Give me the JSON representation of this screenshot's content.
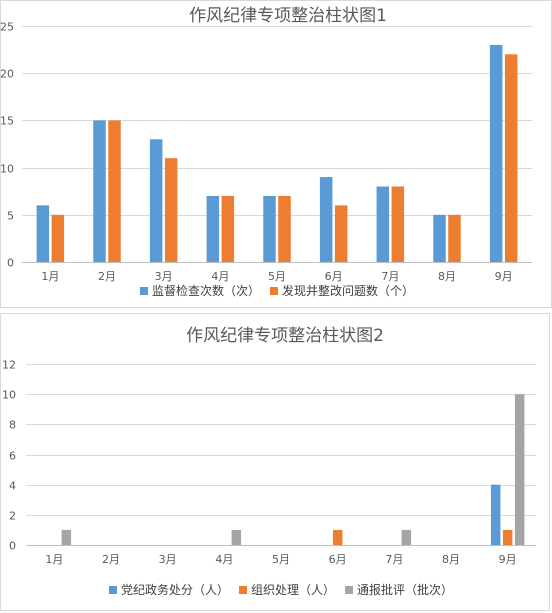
{
  "chart_data": [
    {
      "type": "bar",
      "title": "作风纪律专项整治柱状图1",
      "categories": [
        "1月",
        "2月",
        "3月",
        "4月",
        "5月",
        "6月",
        "7月",
        "8月",
        "9月"
      ],
      "ylim": [
        0,
        25
      ],
      "yticks": [
        "0",
        "5",
        "10",
        "15",
        "20",
        "25"
      ],
      "grid": true,
      "legend": "bottom",
      "series": [
        {
          "name": "监督检查次数（次）",
          "color": "#5b9bd5",
          "values": [
            6,
            15,
            13,
            7,
            7,
            9,
            8,
            5,
            23
          ]
        },
        {
          "name": "发现并整改问题数（个）",
          "color": "#ed7d31",
          "values": [
            5,
            15,
            11,
            7,
            7,
            6,
            8,
            5,
            22
          ]
        }
      ]
    },
    {
      "type": "bar",
      "title": "作风纪律专项整治柱状图2",
      "categories": [
        "1月",
        "2月",
        "3月",
        "4月",
        "5月",
        "6月",
        "7月",
        "8月",
        "9月"
      ],
      "ylim": [
        0,
        12
      ],
      "yticks": [
        "0",
        "2",
        "4",
        "6",
        "8",
        "10",
        "12"
      ],
      "grid": true,
      "legend": "bottom",
      "series": [
        {
          "name": "党纪政务处分（人）",
          "color": "#5b9bd5",
          "values": [
            0,
            0,
            0,
            0,
            0,
            0,
            0,
            0,
            4
          ]
        },
        {
          "name": "组织处理（人）",
          "color": "#ed7d31",
          "values": [
            0,
            0,
            0,
            0,
            0,
            1,
            0,
            0,
            1
          ]
        },
        {
          "name": "通报批评（批次）",
          "color": "#a5a5a5",
          "values": [
            1,
            0,
            0,
            1,
            0,
            0,
            1,
            0,
            10
          ]
        }
      ]
    }
  ]
}
